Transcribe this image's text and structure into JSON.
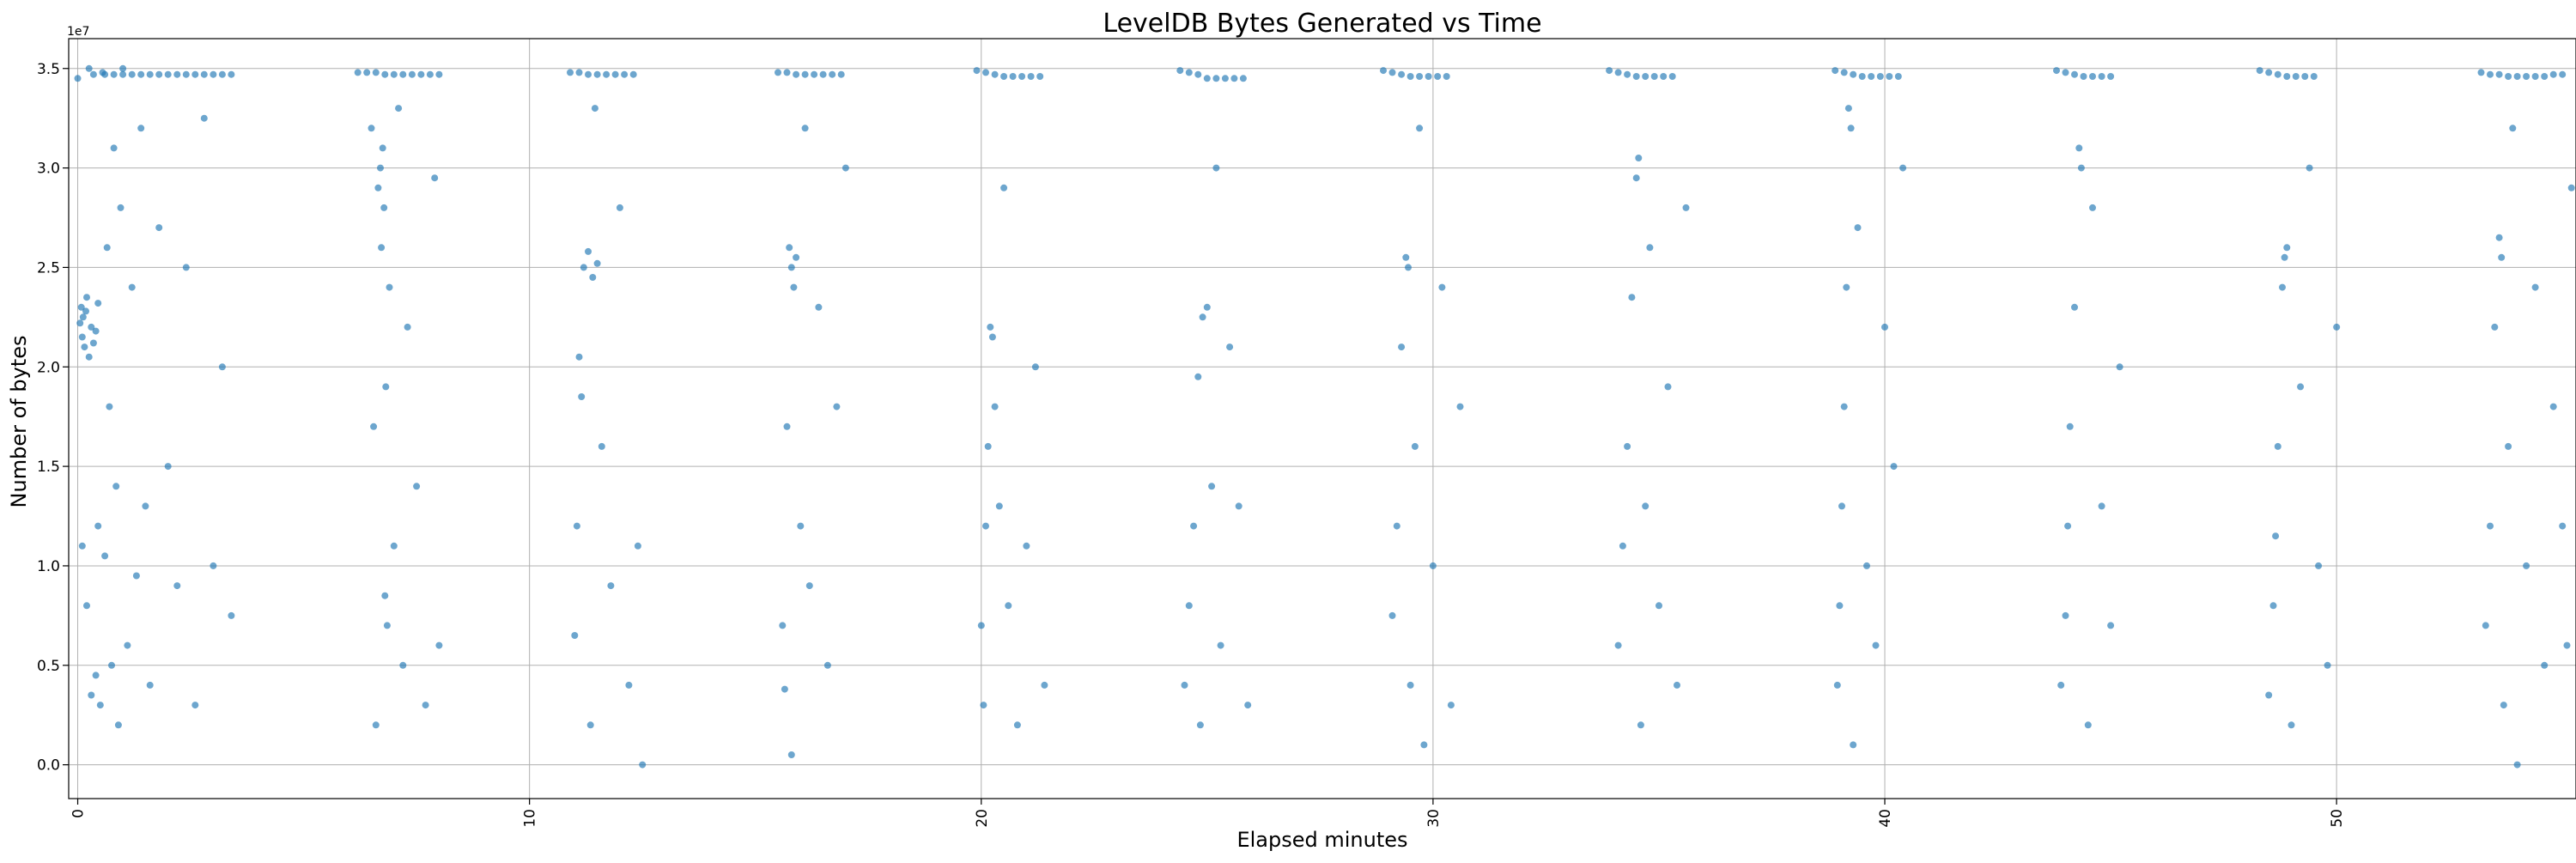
{
  "chart_data": {
    "type": "scatter",
    "title": "LevelDB Bytes Generated vs Time",
    "xlabel": "Elapsed minutes",
    "ylabel": "Number of bytes",
    "offset_text": "1e7",
    "xlim": [
      -0.2,
      55.3
    ],
    "ylim": [
      -0.17,
      3.65
    ],
    "y_scale": 10000000,
    "xticks": [
      0,
      10,
      20,
      30,
      40,
      50
    ],
    "xtick_labels": [
      "0",
      "10",
      "20",
      "30",
      "40",
      "50"
    ],
    "yticks": [
      0.0,
      0.5,
      1.0,
      1.5,
      2.0,
      2.5,
      3.0,
      3.5
    ],
    "ytick_labels": [
      "0.0",
      "0.5",
      "1.0",
      "1.5",
      "2.0",
      "2.5",
      "3.0",
      "3.5"
    ],
    "grid": true,
    "marker_color": "#1f77b4",
    "marker_alpha": 0.65,
    "series": [
      {
        "name": "bytes",
        "points": [
          [
            0.0,
            3.45
          ],
          [
            0.05,
            2.22
          ],
          [
            0.08,
            2.3
          ],
          [
            0.1,
            2.15
          ],
          [
            0.12,
            2.25
          ],
          [
            0.15,
            2.1
          ],
          [
            0.18,
            2.28
          ],
          [
            0.2,
            2.35
          ],
          [
            0.25,
            2.05
          ],
          [
            0.3,
            2.2
          ],
          [
            0.35,
            2.12
          ],
          [
            0.4,
            2.18
          ],
          [
            0.45,
            2.32
          ],
          [
            0.1,
            1.1
          ],
          [
            0.2,
            0.8
          ],
          [
            0.25,
            3.5
          ],
          [
            0.3,
            0.35
          ],
          [
            0.35,
            3.47
          ],
          [
            0.4,
            0.45
          ],
          [
            0.45,
            1.2
          ],
          [
            0.5,
            0.3
          ],
          [
            0.55,
            3.48
          ],
          [
            0.6,
            1.05
          ],
          [
            0.65,
            2.6
          ],
          [
            0.7,
            1.8
          ],
          [
            0.75,
            0.5
          ],
          [
            0.8,
            3.1
          ],
          [
            0.85,
            1.4
          ],
          [
            0.9,
            0.2
          ],
          [
            0.95,
            2.8
          ],
          [
            1.0,
            3.5
          ],
          [
            1.1,
            0.6
          ],
          [
            1.2,
            2.4
          ],
          [
            1.3,
            0.95
          ],
          [
            1.4,
            3.2
          ],
          [
            1.5,
            1.3
          ],
          [
            1.6,
            0.4
          ],
          [
            1.8,
            2.7
          ],
          [
            2.0,
            1.5
          ],
          [
            2.2,
            0.9
          ],
          [
            2.4,
            2.5
          ],
          [
            2.6,
            0.3
          ],
          [
            2.8,
            3.25
          ],
          [
            3.0,
            1.0
          ],
          [
            3.2,
            2.0
          ],
          [
            3.4,
            0.75
          ],
          [
            0.6,
            3.47
          ],
          [
            0.8,
            3.47
          ],
          [
            1.0,
            3.47
          ],
          [
            1.2,
            3.47
          ],
          [
            1.4,
            3.47
          ],
          [
            1.6,
            3.47
          ],
          [
            1.8,
            3.47
          ],
          [
            2.0,
            3.47
          ],
          [
            2.2,
            3.47
          ],
          [
            2.4,
            3.47
          ],
          [
            2.6,
            3.47
          ],
          [
            2.8,
            3.47
          ],
          [
            3.0,
            3.47
          ],
          [
            3.2,
            3.47
          ],
          [
            3.4,
            3.47
          ],
          [
            6.2,
            3.48
          ],
          [
            6.4,
            3.48
          ],
          [
            6.6,
            3.48
          ],
          [
            6.8,
            3.47
          ],
          [
            7.0,
            3.47
          ],
          [
            7.2,
            3.47
          ],
          [
            7.4,
            3.47
          ],
          [
            7.6,
            3.47
          ],
          [
            7.8,
            3.47
          ],
          [
            8.0,
            3.47
          ],
          [
            6.5,
            3.2
          ],
          [
            6.55,
            1.7
          ],
          [
            6.6,
            0.2
          ],
          [
            6.65,
            2.9
          ],
          [
            6.7,
            3.0
          ],
          [
            6.72,
            2.6
          ],
          [
            6.75,
            3.1
          ],
          [
            6.78,
            2.8
          ],
          [
            6.8,
            0.85
          ],
          [
            6.82,
            1.9
          ],
          [
            6.85,
            0.7
          ],
          [
            6.9,
            2.4
          ],
          [
            7.0,
            1.1
          ],
          [
            7.1,
            3.3
          ],
          [
            7.2,
            0.5
          ],
          [
            7.3,
            2.2
          ],
          [
            7.5,
            1.4
          ],
          [
            7.7,
            0.3
          ],
          [
            7.9,
            2.95
          ],
          [
            8.0,
            0.6
          ],
          [
            10.9,
            3.48
          ],
          [
            11.1,
            3.48
          ],
          [
            11.3,
            3.47
          ],
          [
            11.5,
            3.47
          ],
          [
            11.7,
            3.47
          ],
          [
            11.9,
            3.47
          ],
          [
            12.1,
            3.47
          ],
          [
            12.3,
            3.47
          ],
          [
            11.0,
            0.65
          ],
          [
            11.05,
            1.2
          ],
          [
            11.1,
            2.05
          ],
          [
            11.15,
            1.85
          ],
          [
            11.2,
            2.5
          ],
          [
            11.3,
            2.58
          ],
          [
            11.4,
            2.45
          ],
          [
            11.5,
            2.52
          ],
          [
            11.35,
            0.2
          ],
          [
            11.45,
            3.3
          ],
          [
            11.6,
            1.6
          ],
          [
            11.8,
            0.9
          ],
          [
            12.0,
            2.8
          ],
          [
            12.2,
            0.4
          ],
          [
            12.4,
            1.1
          ],
          [
            12.5,
            0.0
          ],
          [
            15.5,
            3.48
          ],
          [
            15.7,
            3.48
          ],
          [
            15.9,
            3.47
          ],
          [
            16.1,
            3.47
          ],
          [
            16.3,
            3.47
          ],
          [
            16.5,
            3.47
          ],
          [
            16.7,
            3.47
          ],
          [
            16.9,
            3.47
          ],
          [
            15.6,
            0.7
          ],
          [
            15.65,
            0.38
          ],
          [
            15.7,
            1.7
          ],
          [
            15.75,
            2.6
          ],
          [
            15.8,
            2.5
          ],
          [
            15.85,
            2.4
          ],
          [
            15.9,
            2.55
          ],
          [
            16.0,
            1.2
          ],
          [
            15.8,
            0.05
          ],
          [
            16.1,
            3.2
          ],
          [
            16.2,
            0.9
          ],
          [
            16.4,
            2.3
          ],
          [
            16.6,
            0.5
          ],
          [
            16.8,
            1.8
          ],
          [
            17.0,
            3.0
          ],
          [
            19.9,
            3.49
          ],
          [
            20.1,
            3.48
          ],
          [
            20.3,
            3.47
          ],
          [
            20.5,
            3.46
          ],
          [
            20.7,
            3.46
          ],
          [
            20.9,
            3.46
          ],
          [
            21.1,
            3.46
          ],
          [
            21.3,
            3.46
          ],
          [
            20.0,
            0.7
          ],
          [
            20.05,
            0.3
          ],
          [
            20.1,
            1.2
          ],
          [
            20.15,
            1.6
          ],
          [
            20.2,
            2.2
          ],
          [
            20.25,
            2.15
          ],
          [
            20.3,
            1.8
          ],
          [
            20.4,
            1.3
          ],
          [
            20.5,
            2.9
          ],
          [
            20.6,
            0.8
          ],
          [
            20.8,
            0.2
          ],
          [
            21.0,
            1.1
          ],
          [
            21.2,
            2.0
          ],
          [
            21.4,
            0.4
          ],
          [
            24.4,
            3.49
          ],
          [
            24.6,
            3.48
          ],
          [
            24.8,
            3.47
          ],
          [
            25.0,
            3.45
          ],
          [
            25.2,
            3.45
          ],
          [
            25.4,
            3.45
          ],
          [
            25.6,
            3.45
          ],
          [
            25.8,
            3.45
          ],
          [
            24.5,
            0.4
          ],
          [
            24.6,
            0.8
          ],
          [
            24.7,
            1.2
          ],
          [
            24.8,
            1.95
          ],
          [
            24.9,
            2.25
          ],
          [
            25.0,
            2.3
          ],
          [
            24.85,
            0.2
          ],
          [
            25.1,
            1.4
          ],
          [
            25.2,
            3.0
          ],
          [
            25.3,
            0.6
          ],
          [
            25.5,
            2.1
          ],
          [
            25.7,
            1.3
          ],
          [
            25.9,
            0.3
          ],
          [
            28.9,
            3.49
          ],
          [
            29.1,
            3.48
          ],
          [
            29.3,
            3.47
          ],
          [
            29.5,
            3.46
          ],
          [
            29.7,
            3.46
          ],
          [
            29.9,
            3.46
          ],
          [
            30.1,
            3.46
          ],
          [
            30.3,
            3.46
          ],
          [
            29.1,
            0.75
          ],
          [
            29.2,
            1.2
          ],
          [
            29.3,
            2.1
          ],
          [
            29.4,
            2.55
          ],
          [
            29.45,
            2.5
          ],
          [
            29.5,
            0.4
          ],
          [
            29.6,
            1.6
          ],
          [
            29.7,
            3.2
          ],
          [
            29.8,
            0.1
          ],
          [
            30.0,
            1.0
          ],
          [
            30.2,
            2.4
          ],
          [
            30.4,
            0.3
          ],
          [
            30.6,
            1.8
          ],
          [
            33.9,
            3.49
          ],
          [
            34.1,
            3.48
          ],
          [
            34.3,
            3.47
          ],
          [
            34.5,
            3.46
          ],
          [
            34.7,
            3.46
          ],
          [
            34.9,
            3.46
          ],
          [
            35.1,
            3.46
          ],
          [
            35.3,
            3.46
          ],
          [
            34.1,
            0.6
          ],
          [
            34.2,
            1.1
          ],
          [
            34.3,
            1.6
          ],
          [
            34.4,
            2.35
          ],
          [
            34.5,
            2.95
          ],
          [
            34.55,
            3.05
          ],
          [
            34.6,
            0.2
          ],
          [
            34.7,
            1.3
          ],
          [
            34.8,
            2.6
          ],
          [
            35.0,
            0.8
          ],
          [
            35.2,
            1.9
          ],
          [
            35.4,
            0.4
          ],
          [
            35.6,
            2.8
          ],
          [
            38.9,
            3.49
          ],
          [
            39.1,
            3.48
          ],
          [
            39.3,
            3.47
          ],
          [
            39.5,
            3.46
          ],
          [
            39.7,
            3.46
          ],
          [
            39.9,
            3.46
          ],
          [
            40.1,
            3.46
          ],
          [
            40.3,
            3.46
          ],
          [
            38.95,
            0.4
          ],
          [
            39.0,
            0.8
          ],
          [
            39.05,
            1.3
          ],
          [
            39.1,
            1.8
          ],
          [
            39.15,
            2.4
          ],
          [
            39.2,
            3.3
          ],
          [
            39.25,
            3.2
          ],
          [
            39.3,
            0.1
          ],
          [
            39.4,
            2.7
          ],
          [
            39.6,
            1.0
          ],
          [
            39.8,
            0.6
          ],
          [
            40.0,
            2.2
          ],
          [
            40.2,
            1.5
          ],
          [
            40.4,
            3.0
          ],
          [
            43.8,
            3.49
          ],
          [
            44.0,
            3.48
          ],
          [
            44.2,
            3.47
          ],
          [
            44.4,
            3.46
          ],
          [
            44.6,
            3.46
          ],
          [
            44.8,
            3.46
          ],
          [
            45.0,
            3.46
          ],
          [
            43.9,
            0.4
          ],
          [
            44.0,
            0.75
          ],
          [
            44.05,
            1.2
          ],
          [
            44.1,
            1.7
          ],
          [
            44.2,
            2.3
          ],
          [
            44.3,
            3.1
          ],
          [
            44.35,
            3.0
          ],
          [
            44.5,
            0.2
          ],
          [
            44.6,
            2.8
          ],
          [
            44.8,
            1.3
          ],
          [
            45.0,
            0.7
          ],
          [
            45.2,
            2.0
          ],
          [
            48.3,
            3.49
          ],
          [
            48.5,
            3.48
          ],
          [
            48.7,
            3.47
          ],
          [
            48.9,
            3.46
          ],
          [
            49.1,
            3.46
          ],
          [
            49.3,
            3.46
          ],
          [
            49.5,
            3.46
          ],
          [
            48.5,
            0.35
          ],
          [
            48.6,
            0.8
          ],
          [
            48.65,
            1.15
          ],
          [
            48.7,
            1.6
          ],
          [
            48.8,
            2.4
          ],
          [
            48.85,
            2.55
          ],
          [
            48.9,
            2.6
          ],
          [
            49.0,
            0.2
          ],
          [
            49.2,
            1.9
          ],
          [
            49.4,
            3.0
          ],
          [
            49.6,
            1.0
          ],
          [
            49.8,
            0.5
          ],
          [
            50.0,
            2.2
          ],
          [
            53.2,
            3.48
          ],
          [
            53.4,
            3.47
          ],
          [
            53.6,
            3.47
          ],
          [
            53.8,
            3.46
          ],
          [
            54.0,
            3.46
          ],
          [
            54.2,
            3.46
          ],
          [
            54.4,
            3.46
          ],
          [
            54.6,
            3.46
          ],
          [
            54.8,
            3.47
          ],
          [
            55.0,
            3.47
          ],
          [
            53.3,
            0.7
          ],
          [
            53.4,
            1.2
          ],
          [
            53.5,
            2.2
          ],
          [
            53.6,
            2.65
          ],
          [
            53.65,
            2.55
          ],
          [
            53.7,
            0.3
          ],
          [
            53.8,
            1.6
          ],
          [
            53.9,
            3.2
          ],
          [
            54.0,
            0.0
          ],
          [
            54.2,
            1.0
          ],
          [
            54.4,
            2.4
          ],
          [
            54.6,
            0.5
          ],
          [
            54.8,
            1.8
          ],
          [
            55.0,
            1.2
          ],
          [
            55.1,
            0.6
          ],
          [
            55.2,
            2.9
          ]
        ]
      }
    ]
  }
}
